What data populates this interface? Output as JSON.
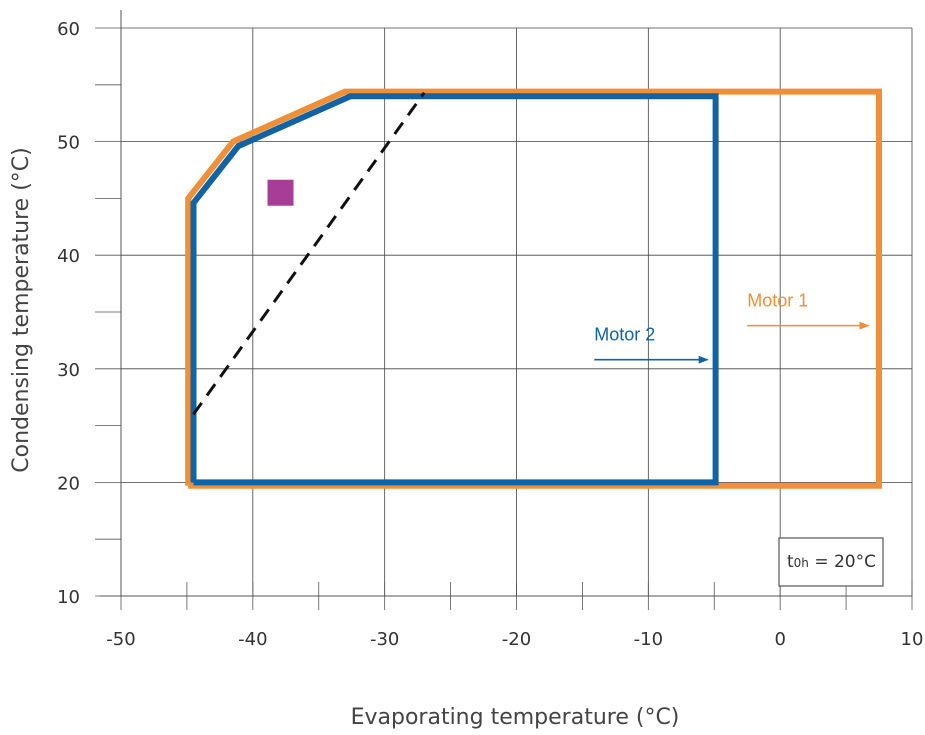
{
  "chart_data": {
    "type": "line",
    "xlabel": "Evaporating temperature (°C)",
    "ylabel": "Condensing temperature (°C)",
    "xlim": [
      -50,
      10
    ],
    "ylim": [
      10,
      60
    ],
    "x_ticks": [
      -50,
      -40,
      -30,
      -20,
      -10,
      0,
      10
    ],
    "y_ticks": [
      10,
      20,
      30,
      40,
      50,
      60
    ],
    "x_ticks_label": [
      "-50",
      "-40",
      "-30",
      "-20",
      "-10",
      "0",
      "10"
    ],
    "y_ticks_label": [
      "10",
      "20",
      "30",
      "40",
      "50",
      "60"
    ],
    "grid": true,
    "series": [
      {
        "name": "Motor 1",
        "color": "#EE8F3A",
        "points": [
          [
            -44.9,
            19.7
          ],
          [
            -44.9,
            45.0
          ],
          [
            -41.5,
            50.0
          ],
          [
            -33.0,
            54.4
          ],
          [
            7.5,
            54.4
          ],
          [
            7.5,
            19.7
          ],
          [
            -44.9,
            19.7
          ]
        ],
        "label_at": [
          -2.5,
          35.5
        ],
        "arrow": [
          [
            -2.5,
            33.8
          ],
          [
            6.7,
            33.8
          ]
        ]
      },
      {
        "name": "Motor 2",
        "color": "#1263A4",
        "points": [
          [
            -44.5,
            20.0
          ],
          [
            -44.5,
            44.6
          ],
          [
            -41.1,
            49.6
          ],
          [
            -32.6,
            54.0
          ],
          [
            -4.9,
            54.0
          ],
          [
            -4.9,
            20.0
          ],
          [
            -44.5,
            20.0
          ]
        ],
        "label_at": [
          -14.1,
          32.5
        ],
        "arrow": [
          [
            -14.1,
            30.8
          ],
          [
            -5.5,
            30.8
          ]
        ]
      }
    ],
    "dashed_line": {
      "color": "#111111",
      "points": [
        [
          -44.5,
          26.0
        ],
        [
          -27.0,
          54.3
        ]
      ]
    },
    "marker": {
      "shape": "square",
      "color": "#A93C96",
      "x": -37.9,
      "y": 45.5
    },
    "note": {
      "prefix": "t",
      "subscript": "0h",
      "suffix": " = 20°C"
    }
  }
}
